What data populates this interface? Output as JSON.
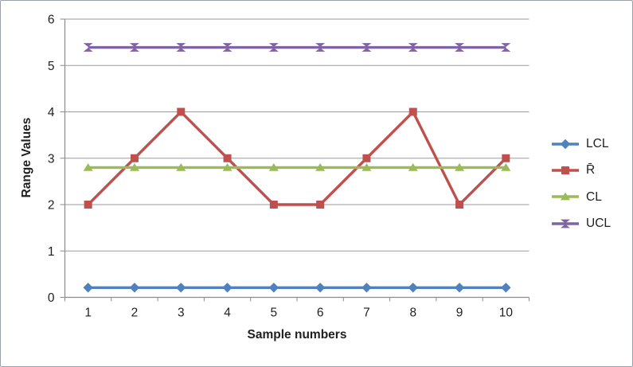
{
  "chart_data": {
    "type": "line",
    "title": "",
    "xlabel": "Sample numbers",
    "ylabel": "Range Values",
    "categories": [
      "1",
      "2",
      "3",
      "4",
      "5",
      "6",
      "7",
      "8",
      "9",
      "10"
    ],
    "series": [
      {
        "name": "LCL",
        "marker": "diamond",
        "color": "#4F81BD",
        "values": [
          0.21,
          0.21,
          0.21,
          0.21,
          0.21,
          0.21,
          0.21,
          0.21,
          0.21,
          0.21
        ]
      },
      {
        "name": "R̄",
        "marker": "square",
        "color": "#C0504D",
        "values": [
          2,
          3,
          4,
          3,
          2,
          2,
          3,
          4,
          2,
          3
        ]
      },
      {
        "name": "CL",
        "marker": "triangle",
        "color": "#9BBB59",
        "values": [
          2.8,
          2.8,
          2.8,
          2.8,
          2.8,
          2.8,
          2.8,
          2.8,
          2.8,
          2.8
        ]
      },
      {
        "name": "UCL",
        "marker": "xcross",
        "color": "#8064A2",
        "values": [
          5.39,
          5.39,
          5.39,
          5.39,
          5.39,
          5.39,
          5.39,
          5.39,
          5.39,
          5.39
        ]
      }
    ],
    "ylim": [
      0,
      6
    ],
    "ytick_step": 1,
    "grid": true,
    "legend_position": "right"
  },
  "colors": {
    "gridline": "#9b9b9b",
    "axis": "#8c8c8c",
    "tick_text": "#1f1f1f",
    "frame_border": "#9aa0a6",
    "background": "#ffffff"
  }
}
